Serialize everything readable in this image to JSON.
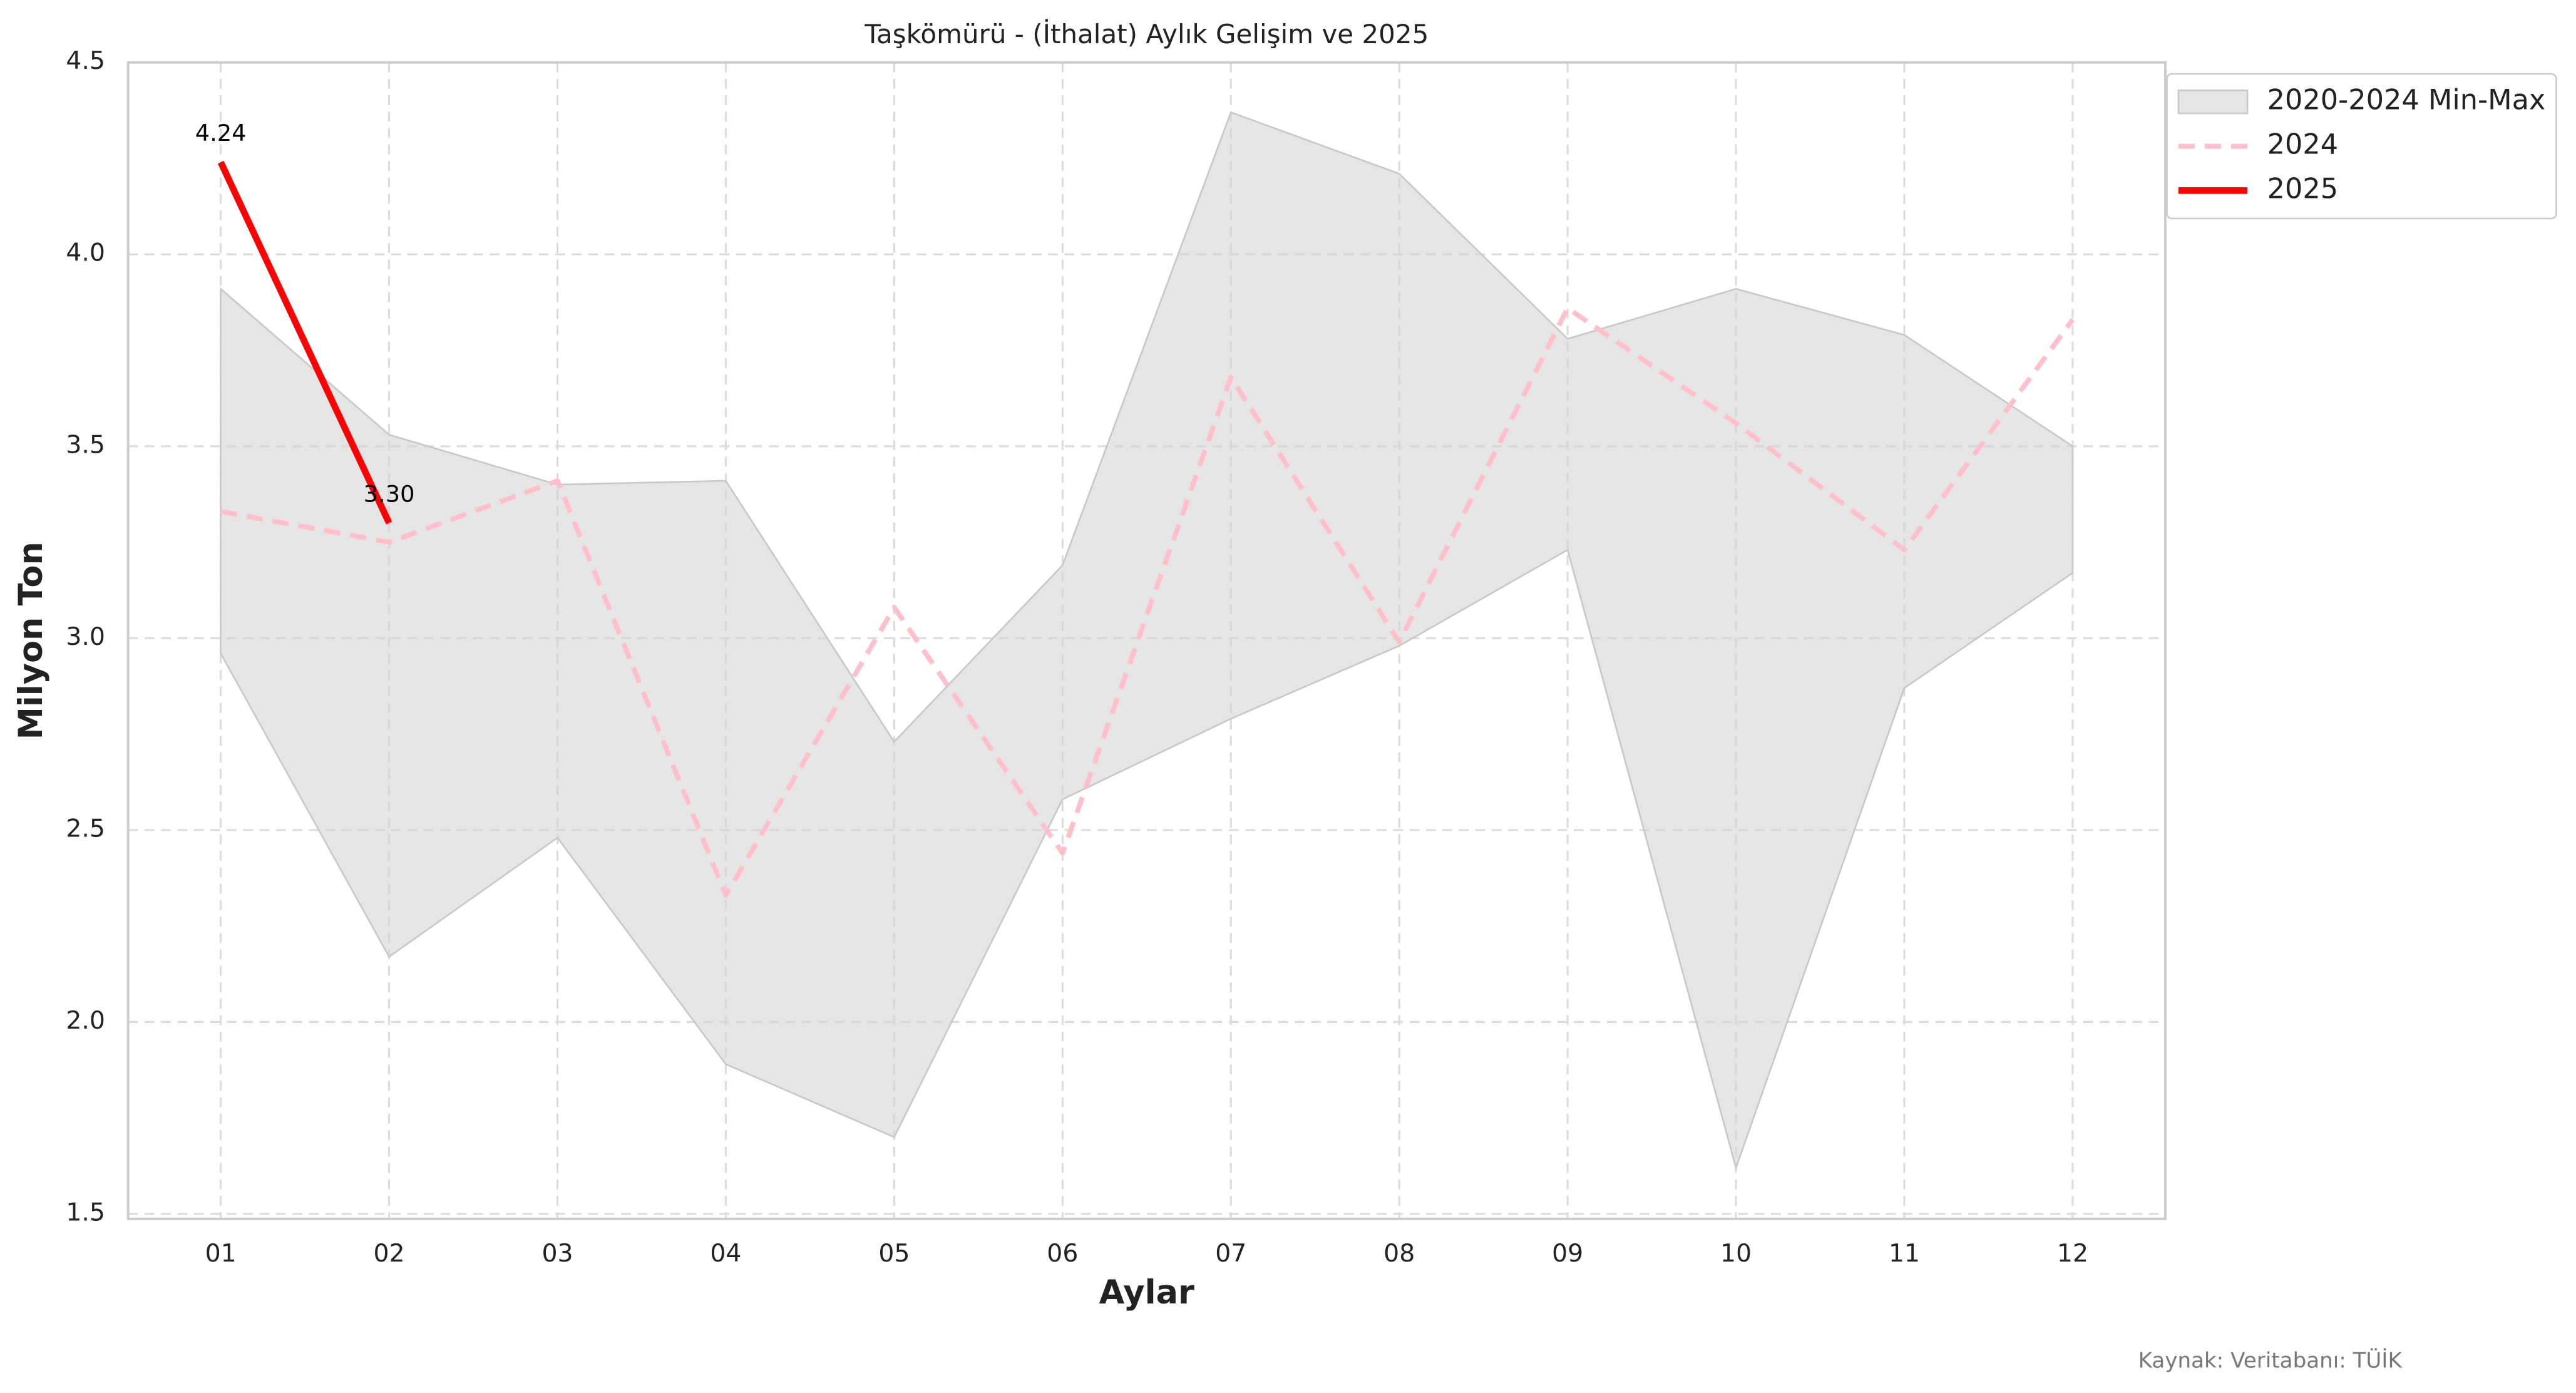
{
  "chart_data": {
    "type": "line",
    "title": "Taşkömürü - (İthalat) Aylık Gelişim ve 2025",
    "x_label": "Aylar",
    "y_label": "Milyon Ton",
    "source": "Kaynak: Veritabanı: TÜİK",
    "categories": [
      "01",
      "02",
      "03",
      "04",
      "05",
      "06",
      "07",
      "08",
      "09",
      "10",
      "11",
      "12"
    ],
    "ylim": [
      1.487,
      4.5
    ],
    "yticks": [
      {
        "value": 1.5,
        "label": "1.5"
      },
      {
        "value": 2,
        "label": "2.0"
      },
      {
        "value": 2.5,
        "label": "2.5"
      },
      {
        "value": 3,
        "label": "3.0"
      },
      {
        "value": 3.5,
        "label": "3.5"
      },
      {
        "value": 4,
        "label": "4.0"
      },
      {
        "value": 4.5,
        "label": "4.5"
      }
    ],
    "grid": true,
    "legend": "upper right outside",
    "band": {
      "name": "2020-2024 Min-Max",
      "color": "#d3d3d3",
      "max": [
        3.91,
        3.53,
        3.4,
        3.41,
        2.73,
        3.19,
        4.37,
        4.21,
        3.78,
        3.91,
        3.79,
        3.5
      ],
      "min": [
        2.96,
        2.17,
        2.48,
        1.89,
        1.7,
        2.58,
        2.79,
        2.98,
        3.23,
        1.62,
        2.87,
        3.17
      ]
    },
    "series": [
      {
        "name": "2024",
        "color": "#ffc0cb",
        "dashed": true,
        "values": [
          3.33,
          3.25,
          3.41,
          2.33,
          3.08,
          2.44,
          3.68,
          2.99,
          3.86,
          3.56,
          3.23,
          3.83
        ]
      },
      {
        "name": "2025",
        "color": "#ff0000",
        "dashed": false,
        "values": [
          4.24,
          3.3,
          null,
          null,
          null,
          null,
          null,
          null,
          null,
          null,
          null,
          null
        ],
        "value_labels": [
          "4.24",
          "3.30",
          null,
          null,
          null,
          null,
          null,
          null,
          null,
          null,
          null,
          null
        ]
      }
    ]
  }
}
